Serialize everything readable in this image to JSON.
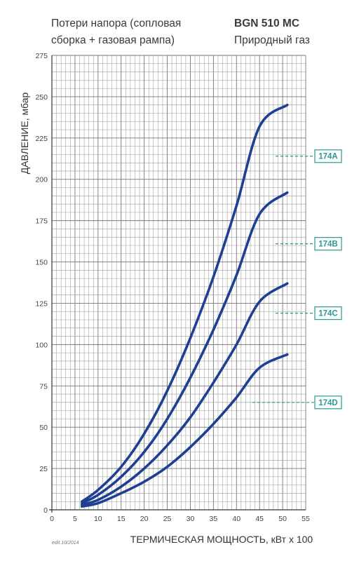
{
  "header": {
    "title_line1": "Потери напора (сопловая",
    "title_line2": "сборка + газовая рампа)",
    "model": "BGN 510 MC",
    "gas": "Природный газ"
  },
  "footer_ref": "edit.10/2014",
  "chart_data": {
    "type": "line",
    "xlabel": "ТЕРМИЧЕСКАЯ МОЩНОСТЬ, кВт x 100",
    "ylabel": "ДАВЛЕНИЕ, мбар",
    "xlim": [
      0,
      55
    ],
    "ylim": [
      0,
      275
    ],
    "x_ticks": [
      0,
      5,
      10,
      15,
      20,
      25,
      30,
      35,
      40,
      45,
      50,
      55
    ],
    "y_ticks": [
      0,
      25,
      50,
      75,
      100,
      125,
      150,
      175,
      200,
      225,
      250,
      275
    ],
    "grid": true,
    "series": [
      {
        "name": "174A",
        "color": "#1f3f93",
        "x": [
          6.5,
          10,
          15,
          20,
          25,
          30,
          35,
          40,
          45,
          51
        ],
        "y": [
          5,
          12,
          26,
          46,
          72,
          104,
          141,
          184,
          232,
          245
        ],
        "label_y": 214
      },
      {
        "name": "174B",
        "color": "#1f3f93",
        "x": [
          6.5,
          10,
          15,
          20,
          25,
          30,
          35,
          40,
          45,
          51
        ],
        "y": [
          4,
          9,
          20,
          35,
          55,
          80,
          109,
          142,
          179,
          192
        ],
        "label_y": 161
      },
      {
        "name": "174C",
        "color": "#1f3f93",
        "x": [
          6.5,
          10,
          15,
          20,
          25,
          30,
          35,
          40,
          45,
          51
        ],
        "y": [
          3,
          6,
          14,
          25,
          39,
          56,
          77,
          100,
          126,
          137
        ],
        "label_y": 119
      },
      {
        "name": "174D",
        "color": "#1f3f93",
        "x": [
          6.5,
          10,
          15,
          20,
          25,
          30,
          35,
          40,
          45,
          51
        ],
        "y": [
          2,
          4,
          10,
          17,
          26,
          38,
          52,
          68,
          86,
          94
        ],
        "label_y": 65
      }
    ],
    "label_color": "#2a9a92"
  }
}
